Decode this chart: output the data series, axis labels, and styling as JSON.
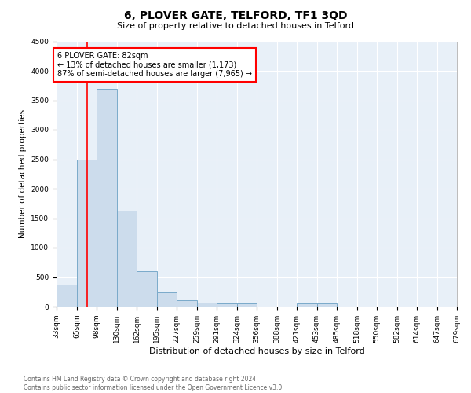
{
  "title": "6, PLOVER GATE, TELFORD, TF1 3QD",
  "subtitle": "Size of property relative to detached houses in Telford",
  "xlabel": "Distribution of detached houses by size in Telford",
  "ylabel": "Number of detached properties",
  "bar_color": "#ccdcec",
  "bar_edge_color": "#7aaaca",
  "background_color": "#e8f0f8",
  "grid_color": "white",
  "bins": [
    "33sqm",
    "65sqm",
    "98sqm",
    "130sqm",
    "162sqm",
    "195sqm",
    "227sqm",
    "259sqm",
    "291sqm",
    "324sqm",
    "356sqm",
    "388sqm",
    "421sqm",
    "453sqm",
    "485sqm",
    "518sqm",
    "550sqm",
    "582sqm",
    "614sqm",
    "647sqm",
    "679sqm"
  ],
  "values": [
    380,
    2500,
    3700,
    1630,
    600,
    240,
    110,
    65,
    55,
    50,
    0,
    0,
    60,
    50,
    0,
    0,
    0,
    0,
    0,
    0
  ],
  "ylim": [
    0,
    4500
  ],
  "yticks": [
    0,
    500,
    1000,
    1500,
    2000,
    2500,
    3000,
    3500,
    4000,
    4500
  ],
  "annotation_text": "6 PLOVER GATE: 82sqm\n← 13% of detached houses are smaller (1,173)\n87% of semi-detached houses are larger (7,965) →",
  "annotation_box_color": "white",
  "annotation_box_edge_color": "red",
  "line_color": "red",
  "footer": "Contains HM Land Registry data © Crown copyright and database right 2024.\nContains public sector information licensed under the Open Government Licence v3.0.",
  "fig_width": 6.0,
  "fig_height": 5.0,
  "title_fontsize": 10,
  "subtitle_fontsize": 8,
  "xlabel_fontsize": 8,
  "ylabel_fontsize": 7.5,
  "tick_fontsize": 6.5,
  "annotation_fontsize": 7,
  "footer_fontsize": 5.5
}
